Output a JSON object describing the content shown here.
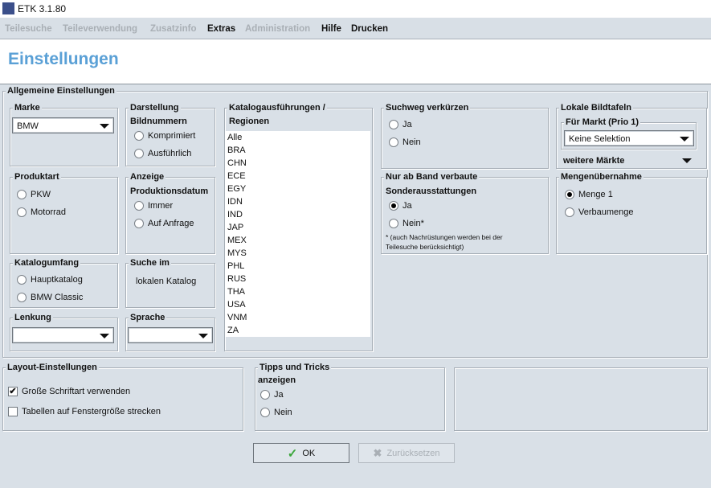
{
  "window": {
    "title": "ETK 3.1.80",
    "icon_text": "ETK"
  },
  "menu": [
    {
      "label": "Teilesuche",
      "enabled": false
    },
    {
      "label": "Teileverwendung",
      "enabled": false
    },
    {
      "label": "Zusatzinfo",
      "enabled": false
    },
    {
      "label": "Extras",
      "enabled": true
    },
    {
      "label": "Administration",
      "enabled": false
    },
    {
      "label": "Hilfe",
      "enabled": true
    },
    {
      "label": "Drucken",
      "enabled": true
    }
  ],
  "page_title": "Einstellungen",
  "general": {
    "title": "Allgemeine Einstellungen",
    "marke": {
      "title": "Marke",
      "value": "BMW"
    },
    "darstellung": {
      "title": "Darstellung",
      "title2": "Bildnummern",
      "options": [
        "Komprimiert",
        "Ausführlich"
      ]
    },
    "produktart": {
      "title": "Produktart",
      "options": [
        "PKW",
        "Motorrad"
      ]
    },
    "anzeige": {
      "title": "Anzeige",
      "title2": "Produktionsdatum",
      "options": [
        "Immer",
        "Auf Anfrage"
      ]
    },
    "katalogumfang": {
      "title": "Katalogumfang",
      "options": [
        "Hauptkatalog",
        "BMW Classic"
      ]
    },
    "suche": {
      "title": "Suche im",
      "text": "lokalen Katalog"
    },
    "lenkung": {
      "title": "Lenkung",
      "value": ""
    },
    "sprache": {
      "title": "Sprache",
      "value": ""
    },
    "katalog": {
      "title": "Katalogausführungen /",
      "title2": "Regionen",
      "items": [
        "Alle",
        "BRA",
        "CHN",
        "ECE",
        "EGY",
        "IDN",
        "IND",
        "JAP",
        "MEX",
        "MYS",
        "PHL",
        "RUS",
        "THA",
        "USA",
        "VNM",
        "ZA"
      ]
    },
    "suchweg": {
      "title": "Suchweg verkürzen",
      "options": [
        "Ja",
        "Nein"
      ]
    },
    "bildtafeln": {
      "title": "Lokale Bildtafeln",
      "markt_title": "Für Markt (Prio 1)",
      "markt_value": "Keine Selektion",
      "weitere": "weitere Märkte"
    },
    "band": {
      "title": "Nur ab Band verbaute",
      "title2": "Sonderausstattungen",
      "options": [
        "Ja",
        "Nein*"
      ],
      "selected": 0,
      "note1": "* (auch Nachrüstungen werden bei der",
      "note2": "Teilesuche berücksichtigt)"
    },
    "menge": {
      "title": "Mengenübernahme",
      "options": [
        "Menge 1",
        "Verbaumenge"
      ],
      "selected": 0
    }
  },
  "layout": {
    "title": "Layout-Einstellungen",
    "options": [
      {
        "label": "Große Schriftart verwenden",
        "checked": true
      },
      {
        "label": "Tabellen auf Fenstergröße strecken",
        "checked": false
      }
    ]
  },
  "tipps": {
    "title": "Tipps und Tricks",
    "title2": "anzeigen",
    "options": [
      "Ja",
      "Nein"
    ]
  },
  "buttons": {
    "ok": "OK",
    "reset": "Zurücksetzen"
  },
  "colors": {
    "title": "#5aa0d6",
    "ok_check": "#3aa63a"
  }
}
